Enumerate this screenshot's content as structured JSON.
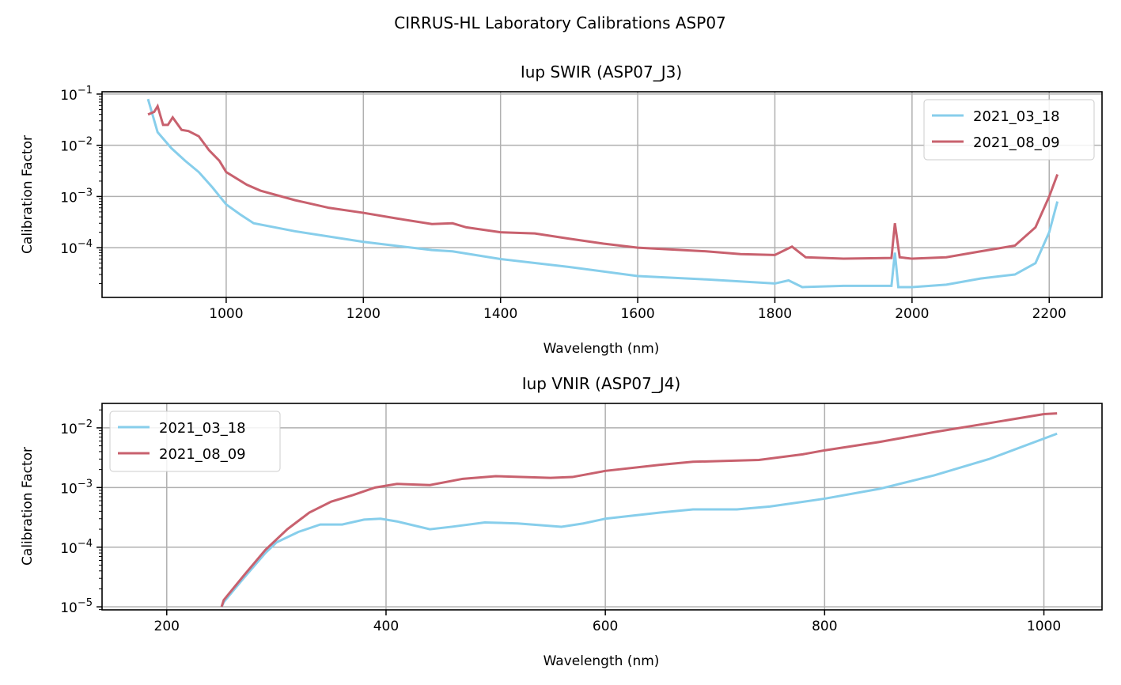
{
  "title": "CIRRUS-HL Laboratory Calibrations ASP07",
  "colors": {
    "2021_03_18": "#87ceeb",
    "2021_08_09": "#c8616e"
  },
  "chart_data": [
    {
      "type": "line",
      "title": "Iup SWIR (ASP07_J3)",
      "xlabel": "Wavelength (nm)",
      "ylabel": "Calibration Factor",
      "xlim": [
        819,
        2277
      ],
      "ylim": [
        1.07e-05,
        0.111
      ],
      "yscale": "log",
      "grid": true,
      "legend": "top-right",
      "xticks": [
        1000,
        1200,
        1400,
        1600,
        1800,
        2000,
        2200
      ],
      "yticks": [
        -1,
        -2,
        -3,
        -4
      ],
      "series": [
        {
          "name": "2021_03_18",
          "color": "#87ceeb",
          "points": [
            [
              886,
              0.08
            ],
            [
              900,
              0.018
            ],
            [
              920,
              0.0088
            ],
            [
              940,
              0.005
            ],
            [
              960,
              0.003
            ],
            [
              980,
              0.0015
            ],
            [
              1000,
              0.0007
            ],
            [
              1020,
              0.00045
            ],
            [
              1040,
              0.0003
            ],
            [
              1100,
              0.00021
            ],
            [
              1200,
              0.00013
            ],
            [
              1300,
              9e-05
            ],
            [
              1330,
              8.5e-05
            ],
            [
              1400,
              6e-05
            ],
            [
              1500,
              4.2e-05
            ],
            [
              1600,
              2.8e-05
            ],
            [
              1700,
              2.4e-05
            ],
            [
              1800,
              2e-05
            ],
            [
              1820,
              2.3e-05
            ],
            [
              1840,
              1.7e-05
            ],
            [
              1900,
              1.8e-05
            ],
            [
              1970,
              1.8e-05
            ],
            [
              1975,
              8e-05
            ],
            [
              1980,
              1.7e-05
            ],
            [
              2000,
              1.7e-05
            ],
            [
              2050,
              1.9e-05
            ],
            [
              2100,
              2.5e-05
            ],
            [
              2150,
              3e-05
            ],
            [
              2180,
              5e-05
            ],
            [
              2200,
              0.0002
            ],
            [
              2212,
              0.0008
            ]
          ]
        },
        {
          "name": "2021_08_09",
          "color": "#c8616e",
          "points": [
            [
              886,
              0.04
            ],
            [
              895,
              0.045
            ],
            [
              900,
              0.058
            ],
            [
              908,
              0.025
            ],
            [
              915,
              0.025
            ],
            [
              922,
              0.035
            ],
            [
              935,
              0.02
            ],
            [
              945,
              0.019
            ],
            [
              960,
              0.015
            ],
            [
              975,
              0.008
            ],
            [
              990,
              0.005
            ],
            [
              1000,
              0.003
            ],
            [
              1030,
              0.0017
            ],
            [
              1050,
              0.0013
            ],
            [
              1100,
              0.00085
            ],
            [
              1150,
              0.0006
            ],
            [
              1200,
              0.00048
            ],
            [
              1250,
              0.00037
            ],
            [
              1300,
              0.00029
            ],
            [
              1330,
              0.0003
            ],
            [
              1350,
              0.00025
            ],
            [
              1400,
              0.0002
            ],
            [
              1450,
              0.00019
            ],
            [
              1500,
              0.00015
            ],
            [
              1550,
              0.00012
            ],
            [
              1600,
              0.0001
            ],
            [
              1700,
              8.5e-05
            ],
            [
              1750,
              7.5e-05
            ],
            [
              1800,
              7.2e-05
            ],
            [
              1825,
              0.000105
            ],
            [
              1845,
              6.5e-05
            ],
            [
              1900,
              6.1e-05
            ],
            [
              1970,
              6.3e-05
            ],
            [
              1975,
              0.0003
            ],
            [
              1982,
              6.5e-05
            ],
            [
              2000,
              6.1e-05
            ],
            [
              2050,
              6.5e-05
            ],
            [
              2100,
              8.5e-05
            ],
            [
              2150,
              0.00011
            ],
            [
              2180,
              0.00025
            ],
            [
              2200,
              0.001
            ],
            [
              2212,
              0.0027
            ]
          ]
        }
      ]
    },
    {
      "type": "line",
      "title": "Iup VNIR (ASP07_J4)",
      "xlabel": "Wavelength (nm)",
      "ylabel": "Calibration Factor",
      "xlim": [
        141,
        1053
      ],
      "ylim": [
        8.9e-06,
        0.0257
      ],
      "yscale": "log",
      "grid": true,
      "legend": "top-left",
      "xticks": [
        200,
        400,
        600,
        800,
        1000
      ],
      "yticks": [
        -2,
        -3,
        -4,
        -5
      ],
      "series": [
        {
          "name": "2021_03_18",
          "color": "#87ceeb",
          "points": [
            [
              250,
              1e-05
            ],
            [
              252,
              1.2e-05
            ],
            [
              270,
              3e-05
            ],
            [
              290,
              8e-05
            ],
            [
              300,
              0.00012
            ],
            [
              320,
              0.00018
            ],
            [
              340,
              0.00024
            ],
            [
              360,
              0.00024
            ],
            [
              380,
              0.00029
            ],
            [
              395,
              0.0003
            ],
            [
              410,
              0.00027
            ],
            [
              440,
              0.0002
            ],
            [
              460,
              0.00022
            ],
            [
              490,
              0.00026
            ],
            [
              520,
              0.00025
            ],
            [
              560,
              0.00022
            ],
            [
              580,
              0.00025
            ],
            [
              600,
              0.0003
            ],
            [
              650,
              0.00038
            ],
            [
              680,
              0.00043
            ],
            [
              720,
              0.00043
            ],
            [
              750,
              0.00048
            ],
            [
              800,
              0.00065
            ],
            [
              850,
              0.00095
            ],
            [
              900,
              0.0016
            ],
            [
              950,
              0.003
            ],
            [
              1012,
              0.008
            ]
          ]
        },
        {
          "name": "2021_08_09",
          "color": "#c8616e",
          "points": [
            [
              250,
              1e-05
            ],
            [
              252,
              1.3e-05
            ],
            [
              270,
              3.3e-05
            ],
            [
              290,
              9e-05
            ],
            [
              310,
              0.0002
            ],
            [
              330,
              0.00038
            ],
            [
              350,
              0.00058
            ],
            [
              370,
              0.00075
            ],
            [
              390,
              0.001
            ],
            [
              410,
              0.00115
            ],
            [
              440,
              0.0011
            ],
            [
              470,
              0.0014
            ],
            [
              500,
              0.00155
            ],
            [
              550,
              0.00145
            ],
            [
              570,
              0.0015
            ],
            [
              600,
              0.0019
            ],
            [
              650,
              0.0024
            ],
            [
              680,
              0.0027
            ],
            [
              740,
              0.0029
            ],
            [
              780,
              0.0036
            ],
            [
              800,
              0.0042
            ],
            [
              850,
              0.0058
            ],
            [
              900,
              0.0085
            ],
            [
              950,
              0.012
            ],
            [
              1000,
              0.017
            ],
            [
              1012,
              0.0175
            ]
          ]
        }
      ]
    }
  ]
}
